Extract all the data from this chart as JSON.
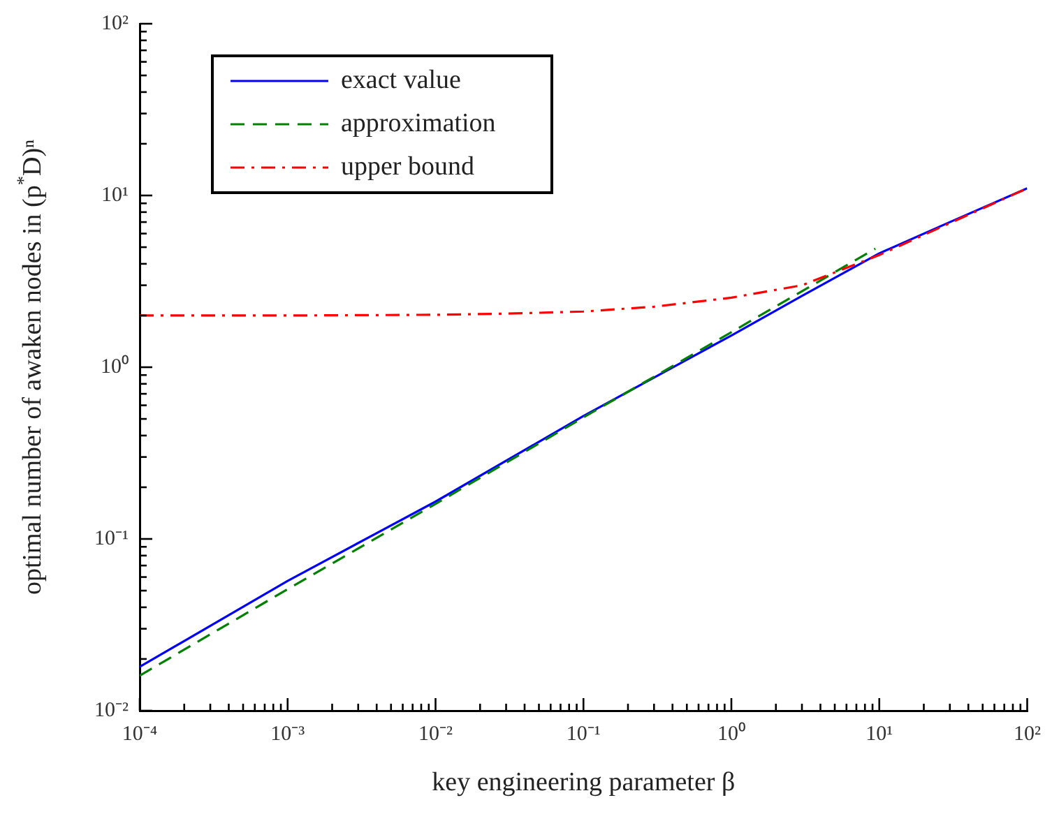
{
  "chart_data": {
    "type": "line",
    "xlabel": "key engineering parameter β",
    "ylabel": "optimal number of awaken nodes in (p$^{*}$D)ⁿ",
    "log": "xy",
    "grid": false,
    "legend": "top left",
    "marker": "none",
    "xlim": [
      0.0001,
      100
    ],
    "ylim": [
      0.01,
      100
    ],
    "xticks": [
      {
        "value": 0.0001,
        "label": "10⁻⁴"
      },
      {
        "value": 0.0002,
        "label": null
      },
      {
        "value": 0.0003,
        "label": null
      },
      {
        "value": 0.0004,
        "label": null
      },
      {
        "value": 0.0005,
        "label": null
      },
      {
        "value": 0.0006,
        "label": null
      },
      {
        "value": 0.0007,
        "label": null
      },
      {
        "value": 0.0008,
        "label": null
      },
      {
        "value": 0.0009,
        "label": null
      },
      {
        "value": 0.001,
        "label": "10⁻³"
      },
      {
        "value": 0.002,
        "label": null
      },
      {
        "value": 0.003,
        "label": null
      },
      {
        "value": 0.004,
        "label": null
      },
      {
        "value": 0.005,
        "label": null
      },
      {
        "value": 0.006,
        "label": null
      },
      {
        "value": 0.007,
        "label": null
      },
      {
        "value": 0.008,
        "label": null
      },
      {
        "value": 0.009,
        "label": null
      },
      {
        "value": 0.01,
        "label": "10⁻²"
      },
      {
        "value": 0.02,
        "label": null
      },
      {
        "value": 0.03,
        "label": null
      },
      {
        "value": 0.04,
        "label": null
      },
      {
        "value": 0.05,
        "label": null
      },
      {
        "value": 0.06,
        "label": null
      },
      {
        "value": 0.07,
        "label": null
      },
      {
        "value": 0.08,
        "label": null
      },
      {
        "value": 0.09,
        "label": null
      },
      {
        "value": 0.1,
        "label": "10⁻¹"
      },
      {
        "value": 0.2,
        "label": null
      },
      {
        "value": 0.3,
        "label": null
      },
      {
        "value": 0.4,
        "label": null
      },
      {
        "value": 0.5,
        "label": null
      },
      {
        "value": 0.6,
        "label": null
      },
      {
        "value": 0.7,
        "label": null
      },
      {
        "value": 0.8,
        "label": null
      },
      {
        "value": 0.9,
        "label": null
      },
      {
        "value": 1,
        "label": "10⁰"
      },
      {
        "value": 2,
        "label": null
      },
      {
        "value": 3,
        "label": null
      },
      {
        "value": 4,
        "label": null
      },
      {
        "value": 5,
        "label": null
      },
      {
        "value": 6,
        "label": null
      },
      {
        "value": 7,
        "label": null
      },
      {
        "value": 8,
        "label": null
      },
      {
        "value": 9,
        "label": null
      },
      {
        "value": 10,
        "label": "10¹"
      },
      {
        "value": 20,
        "label": null
      },
      {
        "value": 30,
        "label": null
      },
      {
        "value": 40,
        "label": null
      },
      {
        "value": 50,
        "label": null
      },
      {
        "value": 60,
        "label": null
      },
      {
        "value": 70,
        "label": null
      },
      {
        "value": 80,
        "label": null
      },
      {
        "value": 90,
        "label": null
      },
      {
        "value": 100,
        "label": "10²"
      }
    ],
    "yticks": [
      {
        "value": 0.01,
        "label": "10⁻²"
      },
      {
        "value": 0.02,
        "label": null
      },
      {
        "value": 0.03,
        "label": null
      },
      {
        "value": 0.04,
        "label": null
      },
      {
        "value": 0.05,
        "label": null
      },
      {
        "value": 0.06,
        "label": null
      },
      {
        "value": 0.07,
        "label": null
      },
      {
        "value": 0.08,
        "label": null
      },
      {
        "value": 0.09,
        "label": null
      },
      {
        "value": 0.1,
        "label": "10⁻¹"
      },
      {
        "value": 0.2,
        "label": null
      },
      {
        "value": 0.3,
        "label": null
      },
      {
        "value": 0.4,
        "label": null
      },
      {
        "value": 0.5,
        "label": null
      },
      {
        "value": 0.6,
        "label": null
      },
      {
        "value": 0.7,
        "label": null
      },
      {
        "value": 0.8,
        "label": null
      },
      {
        "value": 0.9,
        "label": null
      },
      {
        "value": 1,
        "label": "10⁰"
      },
      {
        "value": 2,
        "label": null
      },
      {
        "value": 3,
        "label": null
      },
      {
        "value": 4,
        "label": null
      },
      {
        "value": 5,
        "label": null
      },
      {
        "value": 6,
        "label": null
      },
      {
        "value": 7,
        "label": null
      },
      {
        "value": 8,
        "label": null
      },
      {
        "value": 9,
        "label": null
      },
      {
        "value": 10,
        "label": "10¹"
      },
      {
        "value": 20,
        "label": null
      },
      {
        "value": 30,
        "label": null
      },
      {
        "value": 40,
        "label": null
      },
      {
        "value": 50,
        "label": null
      },
      {
        "value": 60,
        "label": null
      },
      {
        "value": 70,
        "label": null
      },
      {
        "value": 80,
        "label": null
      },
      {
        "value": 90,
        "label": null
      },
      {
        "value": 100,
        "label": "10²"
      }
    ],
    "series": [
      {
        "name": "exact value",
        "color": "#0000ff",
        "line_style": "solid",
        "x": [
          0.0001,
          0.001,
          0.01,
          0.1,
          1,
          3,
          10,
          30,
          100
        ],
        "values": [
          0.018,
          0.057,
          0.165,
          0.52,
          1.53,
          2.6,
          4.6,
          7.0,
          11.0
        ]
      },
      {
        "name": "approximation",
        "color": "#008000",
        "line_style": "dashed",
        "x": [
          0.0001,
          0.001,
          0.01,
          0.1,
          1,
          9.4
        ],
        "values": [
          0.016,
          0.051,
          0.16,
          0.51,
          1.6,
          4.9
        ]
      },
      {
        "name": "upper bound",
        "color": "#ff0000",
        "line_style": "dashdot",
        "x": [
          0.0001,
          0.001,
          0.01,
          0.03,
          0.1,
          0.3,
          1,
          3,
          10,
          30,
          100
        ],
        "values": [
          2.0,
          2.0,
          2.02,
          2.05,
          2.11,
          2.25,
          2.54,
          3.0,
          4.5,
          6.9,
          11.0
        ]
      }
    ]
  }
}
